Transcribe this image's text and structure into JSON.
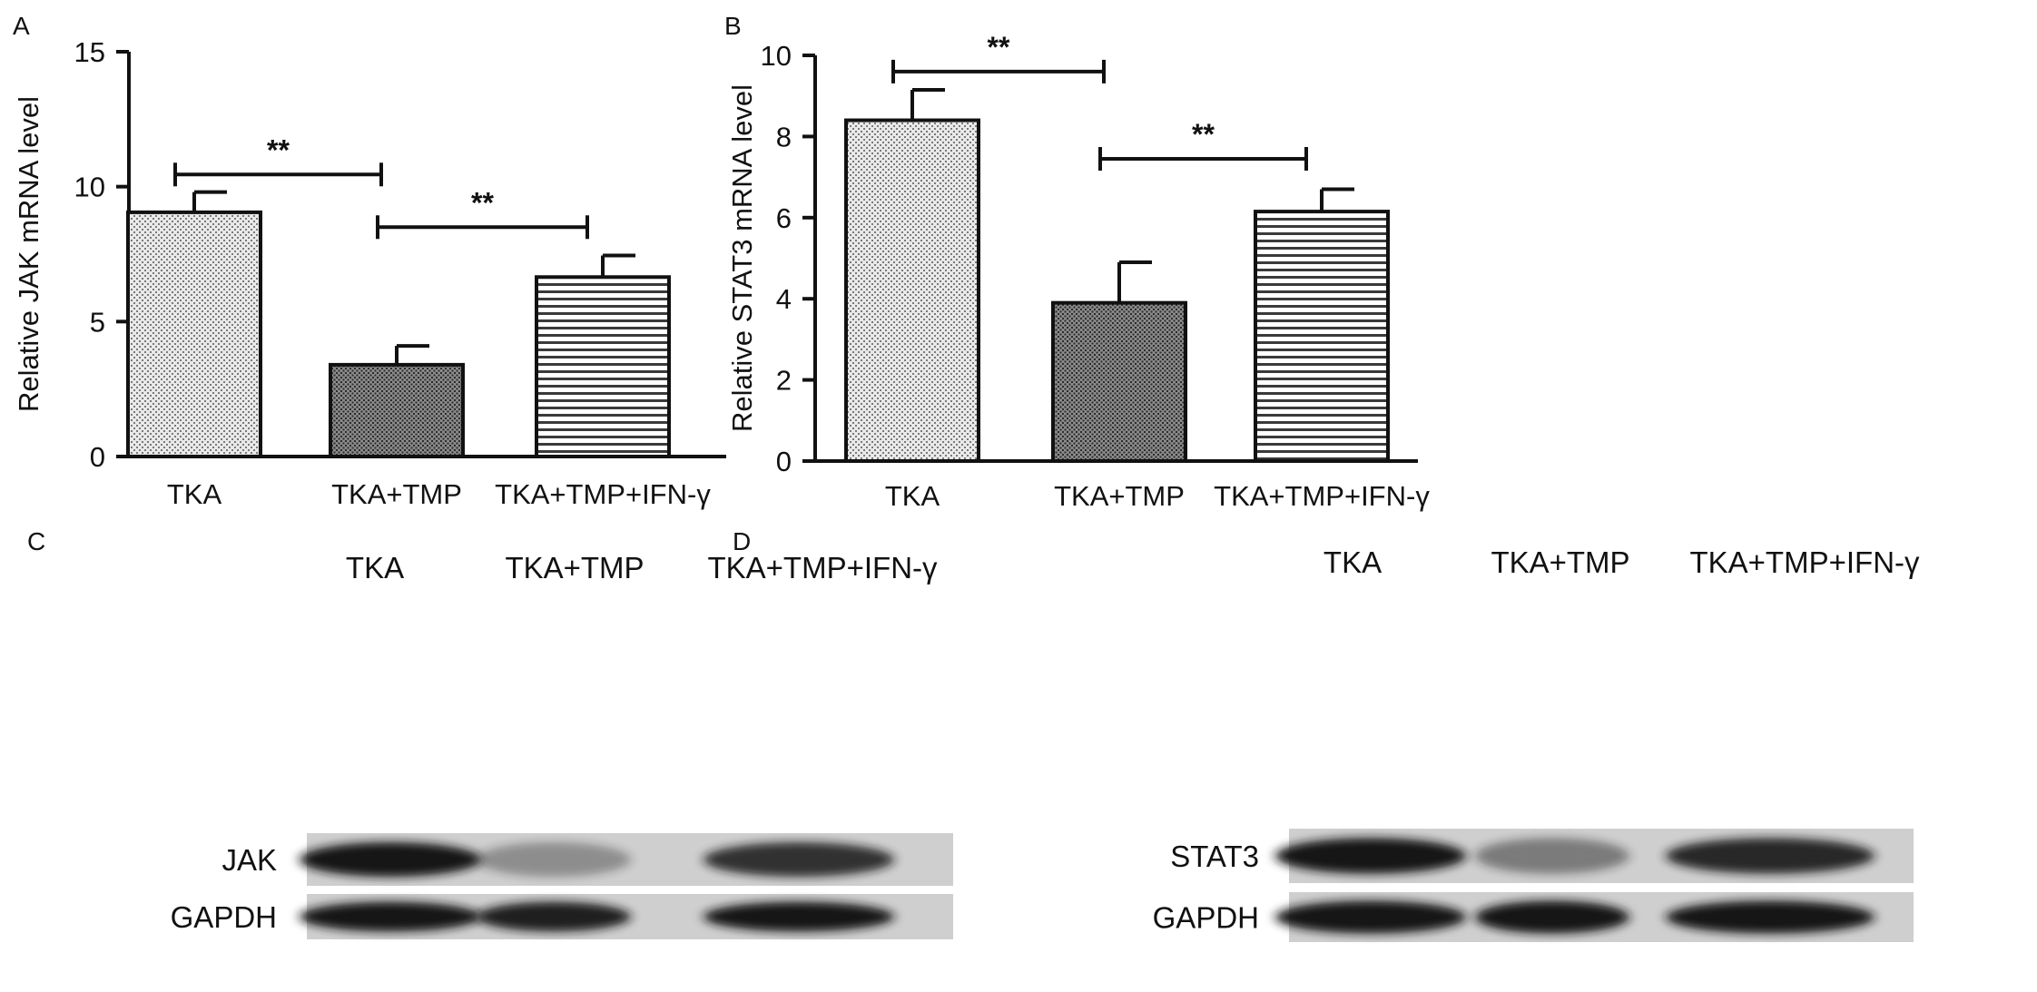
{
  "colors": {
    "ink": "#111111",
    "background": "#ffffff",
    "band": "#161616",
    "blot_bg": "#cfcfcf"
  },
  "chart_data": [
    {
      "panel": "A",
      "type": "bar",
      "categories": [
        "TKA",
        "TKA+TMP",
        "TKA+TMP+IFN-γ"
      ],
      "values": [
        9.05,
        3.4,
        6.65
      ],
      "errors": [
        0.75,
        0.7,
        0.8
      ],
      "patterns": [
        "fine-dots",
        "dense-crosshatch",
        "horizontal-lines"
      ],
      "ylabel": "Relative JAK mRNA level",
      "xlabel": "",
      "ylim": [
        0,
        15
      ],
      "yticks": [
        0,
        5,
        10,
        15
      ],
      "grid": false,
      "legend": "none",
      "significance": [
        {
          "from": 0,
          "to": 1,
          "label": "**",
          "y": 10.45
        },
        {
          "from": 1,
          "to": 2,
          "label": "**",
          "y": 8.5
        }
      ]
    },
    {
      "panel": "B",
      "type": "bar",
      "categories": [
        "TKA",
        "TKA+TMP",
        "TKA+TMP+IFN-γ"
      ],
      "values": [
        8.4,
        3.9,
        6.15
      ],
      "errors": [
        0.75,
        1.0,
        0.55
      ],
      "patterns": [
        "fine-dots",
        "dense-crosshatch",
        "horizontal-lines"
      ],
      "ylabel": "Relative STAT3 mRNA level",
      "xlabel": "",
      "ylim": [
        0,
        10
      ],
      "yticks": [
        0,
        2,
        4,
        6,
        8,
        10
      ],
      "grid": false,
      "legend": "none",
      "significance": [
        {
          "from": 0,
          "to": 1,
          "label": "**",
          "y": 9.6
        },
        {
          "from": 1,
          "to": 2,
          "label": "**",
          "y": 7.45
        }
      ]
    }
  ],
  "blots": [
    {
      "panel": "C",
      "lanes": [
        "TKA",
        "TKA+TMP",
        "TKA+TMP+IFN-γ"
      ],
      "rows": [
        {
          "label": "JAK",
          "intensity": [
            1.0,
            0.35,
            0.85
          ]
        },
        {
          "label": "GAPDH",
          "intensity": [
            1.0,
            0.95,
            1.0
          ]
        }
      ]
    },
    {
      "panel": "D",
      "lanes": [
        "TKA",
        "TKA+TMP",
        "TKA+TMP+IFN-γ"
      ],
      "rows": [
        {
          "label": "STAT3",
          "intensity": [
            1.0,
            0.45,
            0.9
          ]
        },
        {
          "label": "GAPDH",
          "intensity": [
            1.0,
            1.0,
            1.0
          ]
        }
      ]
    }
  ]
}
